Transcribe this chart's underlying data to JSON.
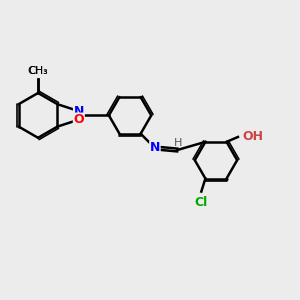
{
  "background_color": "#ececec",
  "bond_color": "#000000",
  "atom_colors": {
    "N": "#0000ff",
    "O": "#ff0000",
    "Cl": "#00aa00",
    "H": "#555555",
    "OH": "#cc4444"
  },
  "title": "",
  "figsize": [
    3.0,
    3.0
  ],
  "dpi": 100
}
